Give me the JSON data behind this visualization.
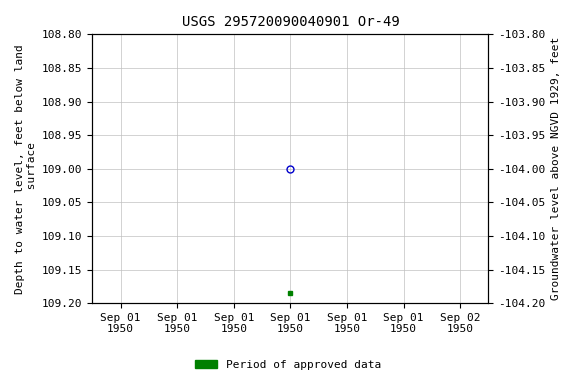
{
  "title": "USGS 295720090040901 Or-49",
  "ylabel_left": "Depth to water level, feet below land\n surface",
  "ylabel_right": "Groundwater level above NGVD 1929, feet",
  "ylim_left": [
    108.8,
    109.2
  ],
  "ylim_right": [
    -103.8,
    -104.2
  ],
  "yticks_left": [
    108.8,
    108.85,
    108.9,
    108.95,
    109.0,
    109.05,
    109.1,
    109.15,
    109.2
  ],
  "yticks_right": [
    -103.8,
    -103.85,
    -103.9,
    -103.95,
    -104.0,
    -104.05,
    -104.1,
    -104.15,
    -104.2
  ],
  "data_point_x": 3,
  "data_point_y_circle": 109.0,
  "data_point_y_square": 109.185,
  "data_point_color_circle": "#0000cc",
  "data_point_color_square": "#008000",
  "x_ticks": [
    0,
    1,
    2,
    3,
    4,
    5,
    6
  ],
  "x_tick_labels": [
    "Sep 01\n1950",
    "Sep 01\n1950",
    "Sep 01\n1950",
    "Sep 01\n1950",
    "Sep 01\n1950",
    "Sep 01\n1950",
    "Sep 02\n1950"
  ],
  "xlim": [
    -0.5,
    6.5
  ],
  "legend_label": "Period of approved data",
  "legend_color": "#008000",
  "background_color": "#ffffff",
  "grid_color": "#c0c0c0",
  "title_fontsize": 10,
  "label_fontsize": 8,
  "tick_fontsize": 8
}
